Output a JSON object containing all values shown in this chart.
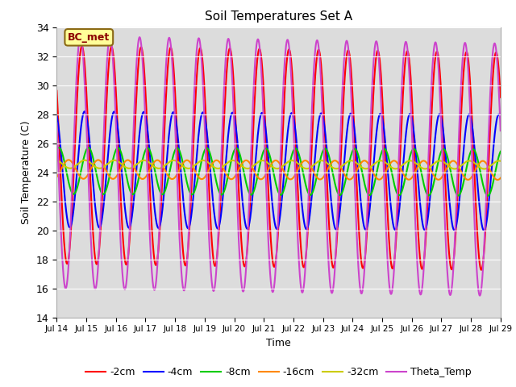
{
  "title": "Soil Temperatures Set A",
  "xlabel": "Time",
  "ylabel": "Soil Temperature (C)",
  "ylim": [
    14,
    34
  ],
  "background_color": "#dcdcdc",
  "fig_background": "#ffffff",
  "annotation_text": "BC_met",
  "annotation_facecolor": "#ffff99",
  "annotation_edgecolor": "#8b6914",
  "annotation_textcolor": "#8b0000",
  "series": [
    {
      "label": "-2cm",
      "color": "#ff0000",
      "amplitude": 7.5,
      "mean": 25.2,
      "phase_lag": 0.0,
      "mean_drift": -0.03
    },
    {
      "label": "-4cm",
      "color": "#0000ff",
      "amplitude": 4.0,
      "mean": 24.2,
      "phase_lag": 0.09,
      "mean_drift": -0.015
    },
    {
      "label": "-8cm",
      "color": "#00cc00",
      "amplitude": 1.6,
      "mean": 24.1,
      "phase_lag": 0.22,
      "mean_drift": -0.008
    },
    {
      "label": "-16cm",
      "color": "#ff8800",
      "amplitude": 0.65,
      "mean": 24.2,
      "phase_lag": 0.55,
      "mean_drift": -0.005
    },
    {
      "label": "-32cm",
      "color": "#cccc00",
      "amplitude": 0.28,
      "mean": 24.55,
      "phase_lag": 1.1,
      "mean_drift": -0.003
    },
    {
      "label": "Theta_Temp",
      "color": "#cc44cc",
      "amplitude": 8.7,
      "mean": 24.7,
      "phase_lag": -0.05,
      "mean_drift": -0.035
    }
  ],
  "xtick_labels": [
    "Jul 14",
    "Jul 15",
    "Jul 16",
    "Jul 17",
    "Jul 18",
    "Jul 19",
    "Jul 20",
    "Jul 21",
    "Jul 22",
    "Jul 23",
    "Jul 24",
    "Jul 25",
    "Jul 26",
    "Jul 27",
    "Jul 28",
    "Jul 29"
  ],
  "grid_color": "#ffffff",
  "linewidth": 1.5
}
